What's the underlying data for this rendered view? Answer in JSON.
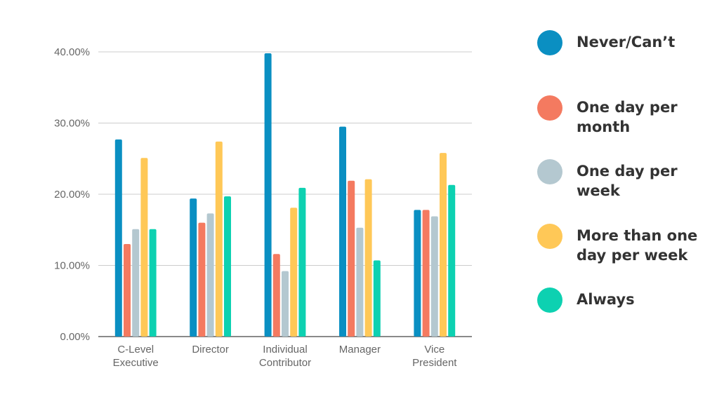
{
  "chart_data": {
    "type": "bar",
    "title": "",
    "xlabel": "",
    "ylabel": "",
    "ylim": [
      0,
      0.4
    ],
    "yticks": [
      "0.00%",
      "10.00%",
      "20.00%",
      "30.00%",
      "40.00%"
    ],
    "categories": [
      [
        "C-Level",
        "Executive"
      ],
      [
        "Director"
      ],
      [
        "Individual",
        "Contributor"
      ],
      [
        "Manager"
      ],
      [
        "Vice",
        "President"
      ]
    ],
    "series": [
      {
        "name": "Never/Can’t",
        "color": "#0A8FC2",
        "values": [
          0.277,
          0.194,
          0.398,
          0.295,
          0.178
        ]
      },
      {
        "name": "One day per month",
        "color": "#F47A60",
        "values": [
          0.13,
          0.16,
          0.116,
          0.219,
          0.178
        ]
      },
      {
        "name": "One day per week",
        "color": "#B4C8D0",
        "values": [
          0.151,
          0.173,
          0.092,
          0.153,
          0.169
        ]
      },
      {
        "name": "More than one day per week",
        "color": "#FFC857",
        "values": [
          0.251,
          0.274,
          0.181,
          0.221,
          0.258
        ]
      },
      {
        "name": "Always",
        "color": "#0DD1B1",
        "values": [
          0.151,
          0.197,
          0.209,
          0.107,
          0.213
        ]
      }
    ],
    "grid": true,
    "legend_position": "right"
  },
  "legend": {
    "items": [
      {
        "lines": [
          "Never/Can’t"
        ]
      },
      {
        "lines": [
          "One day per",
          "month"
        ]
      },
      {
        "lines": [
          "One day per",
          "week"
        ]
      },
      {
        "lines": [
          "More than one",
          "day per week"
        ]
      },
      {
        "lines": [
          "Always"
        ]
      }
    ]
  }
}
